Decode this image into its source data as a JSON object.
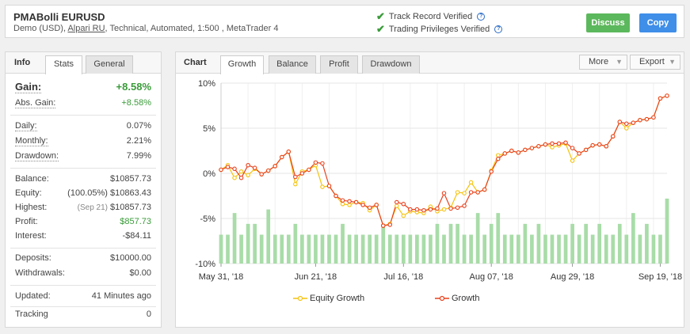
{
  "header": {
    "title": "PMABolli EURUSD",
    "subtitle_prefix": "Demo (USD),",
    "broker": "Alpari RU",
    "subtitle_suffix": ", Technical, Automated, 1:500 , MetaTrader 4",
    "verified": [
      "Track Record Verified",
      "Trading Privileges Verified"
    ],
    "discuss_label": "Discuss",
    "copy_label": "Copy"
  },
  "info": {
    "label": "Info",
    "tabs": [
      "Stats",
      "General"
    ],
    "gain_label": "Gain:",
    "gain_value": "+8.58%",
    "abs_gain_label": "Abs. Gain:",
    "abs_gain_value": "+8.58%",
    "daily_label": "Daily:",
    "daily_value": "0.07%",
    "monthly_label": "Monthly:",
    "monthly_value": "2.21%",
    "drawdown_label": "Drawdown:",
    "drawdown_value": "7.99%",
    "balance_label": "Balance:",
    "balance_value": "$10857.73",
    "equity_label": "Equity:",
    "equity_note": "(100.05%)",
    "equity_value": "$10863.43",
    "highest_label": "Highest:",
    "highest_note": "(Sep 21)",
    "highest_value": "$10857.73",
    "profit_label": "Profit:",
    "profit_value": "$857.73",
    "interest_label": "Interest:",
    "interest_value": "-$84.11",
    "deposits_label": "Deposits:",
    "deposits_value": "$10000.00",
    "withdrawals_label": "Withdrawals:",
    "withdrawals_value": "$0.00",
    "updated_label": "Updated:",
    "updated_value": "41 Minutes ago",
    "tracking_label": "Tracking",
    "tracking_value": "0"
  },
  "chart_panel": {
    "label": "Chart",
    "tabs": [
      "Growth",
      "Balance",
      "Profit",
      "Drawdown"
    ],
    "more_label": "More",
    "export_label": "Export"
  },
  "colors": {
    "growth": "#e8401c",
    "equity": "#f5c30e",
    "bars": "#a8dca8",
    "green": "#3a9b3a"
  },
  "chart_data": {
    "type": "line",
    "title": "",
    "ylim": [
      -10,
      10
    ],
    "yticks": [
      "10%",
      "5%",
      "0%",
      "-5%",
      "-10%"
    ],
    "xticks": [
      "May 31, '18",
      "Jun 21, '18",
      "Jul 16, '18",
      "Aug 07, '18",
      "Aug 29, '18",
      "Sep 19, '18"
    ],
    "xtick_index": [
      0,
      14,
      27,
      40,
      52,
      65
    ],
    "series": [
      {
        "name": "Equity Growth",
        "values": [
          0.4,
          0.9,
          -0.5,
          0.2,
          -0.2,
          0.5,
          -0.1,
          0.3,
          0.8,
          1.8,
          2.4,
          -1.2,
          0.2,
          0.4,
          0.9,
          -1.5,
          -1.4,
          -2.5,
          -3.4,
          -3.5,
          -3.2,
          -3.3,
          -4.1,
          -3.5,
          -5.8,
          -5.6,
          -3.6,
          -4.7,
          -4.2,
          -4.3,
          -4.4,
          -3.7,
          -4.2,
          -4.0,
          -3.8,
          -2.1,
          -2.2,
          -1.0,
          -2.1,
          -1.8,
          0.3,
          2.0,
          2.2,
          2.5,
          2.3,
          2.6,
          2.8,
          3.0,
          3.2,
          2.9,
          3.1,
          3.3,
          1.4,
          2.2,
          2.6,
          3.1,
          3.2,
          3.0,
          4.1,
          5.7,
          5.0,
          5.6,
          5.9,
          6.0,
          6.2,
          8.3,
          8.6
        ]
      },
      {
        "name": "Growth",
        "values": [
          0.4,
          0.7,
          0.5,
          -0.5,
          0.9,
          0.6,
          -0.1,
          0.3,
          0.8,
          1.8,
          2.4,
          -0.4,
          0.0,
          0.4,
          1.2,
          1.1,
          -1.4,
          -2.5,
          -3.0,
          -3.1,
          -3.2,
          -3.5,
          -3.8,
          -3.5,
          -5.8,
          -5.7,
          -3.2,
          -3.4,
          -4.0,
          -4.0,
          -4.1,
          -4.0,
          -3.9,
          -2.2,
          -3.9,
          -3.8,
          -3.6,
          -2.1,
          -2.1,
          -1.8,
          0.2,
          1.6,
          2.2,
          2.5,
          2.3,
          2.6,
          2.8,
          3.0,
          3.2,
          3.3,
          3.3,
          3.4,
          2.8,
          2.2,
          2.6,
          3.1,
          3.2,
          3.0,
          4.1,
          5.7,
          5.5,
          5.6,
          5.9,
          6.0,
          6.2,
          8.3,
          8.6
        ]
      }
    ],
    "bars": [
      9,
      9,
      14,
      9,
      9,
      9,
      9,
      14,
      9,
      9,
      9,
      14,
      9,
      9,
      9,
      9,
      9,
      9,
      14,
      9,
      9,
      9,
      9,
      9,
      9,
      14,
      9,
      9,
      9,
      9,
      9,
      9,
      9,
      9,
      9,
      14,
      9,
      9,
      9,
      14,
      9,
      14,
      9,
      9,
      9,
      9,
      9,
      9,
      9,
      9,
      9,
      9,
      14,
      9,
      9,
      9,
      9,
      9,
      9,
      9,
      9,
      14,
      9,
      9,
      9,
      9,
      9
    ],
    "bar_pct": [
      16,
      16,
      28,
      16,
      22,
      22,
      16,
      30,
      16,
      16,
      16,
      22,
      16,
      16,
      16,
      16,
      16,
      16,
      22,
      16,
      16,
      16,
      16,
      16,
      22,
      16,
      16,
      16,
      16,
      16,
      16,
      16,
      22,
      16,
      22,
      22,
      16,
      16,
      28,
      16,
      22,
      28,
      16,
      16,
      16,
      22,
      16,
      22,
      16,
      16,
      16,
      16,
      22,
      16,
      22,
      16,
      22,
      16,
      16,
      22,
      16,
      28,
      16,
      22,
      16,
      16,
      36
    ],
    "legend": [
      "Equity Growth",
      "Growth"
    ]
  }
}
